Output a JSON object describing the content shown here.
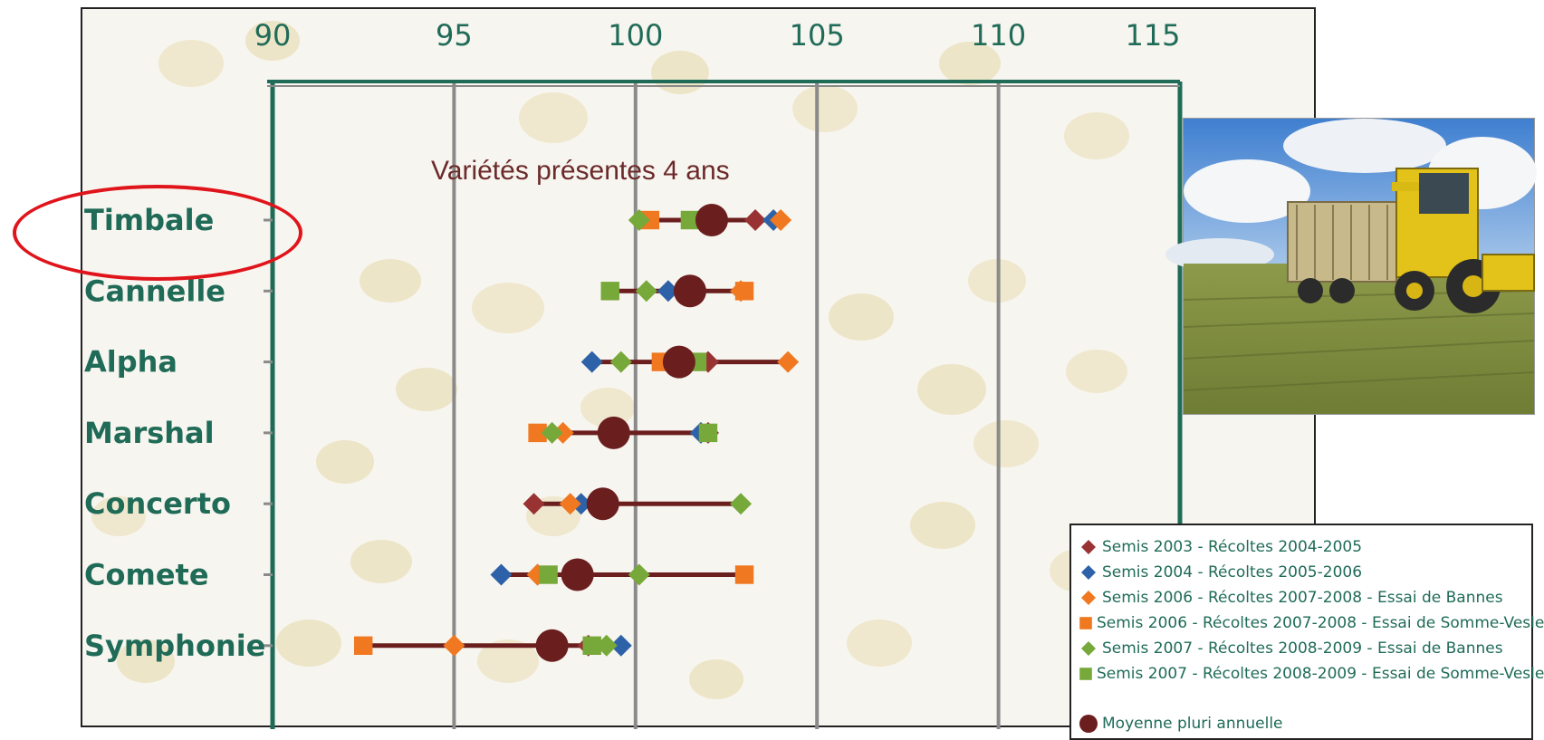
{
  "chart_data": {
    "type": "scatter",
    "orientation": "horizontal",
    "title": "Variétés présentes 4 ans",
    "xlim": [
      90,
      115
    ],
    "x_ticks": [
      "90",
      "95",
      "100",
      "105",
      "110",
      "115"
    ],
    "x_axis_position": "top",
    "grid": true,
    "legend_position": "bottom-right",
    "highlighted_category": "Timbale",
    "categories": [
      "Timbale",
      "Cannelle",
      "Alpha",
      "Marshal",
      "Concerto",
      "Comete",
      "Symphonie"
    ],
    "series": [
      {
        "name": "Semis 2003 - Récoltes 2004-2005",
        "marker": "diamond",
        "color": "#993333",
        "values": [
          103.3,
          null,
          102.0,
          102.0,
          97.2,
          97.3,
          98.7
        ]
      },
      {
        "name": "Semis 2004 - Récoltes 2005-2006",
        "marker": "diamond",
        "color": "#2e62a8",
        "values": [
          103.8,
          100.9,
          98.8,
          101.8,
          98.5,
          96.3,
          99.6
        ]
      },
      {
        "name": "Semis 2006 - Récoltes 2007-2008 - Essai de Bannes",
        "marker": "diamond",
        "color": "#f07820",
        "values": [
          104.0,
          102.9,
          104.2,
          98.0,
          98.2,
          97.3,
          95.0
        ]
      },
      {
        "name": "Semis 2006 - Récoltes 2007-2008 - Essai de Somme-Vesle",
        "marker": "square",
        "color": "#f07820",
        "values": [
          100.4,
          103.0,
          100.7,
          97.3,
          null,
          103.0,
          92.5
        ]
      },
      {
        "name": "Semis 2007 - Récoltes 2008-2009 - Essai de Bannes",
        "marker": "diamond",
        "color": "#77a83a",
        "values": [
          100.1,
          100.3,
          99.6,
          97.7,
          102.9,
          100.1,
          99.2
        ]
      },
      {
        "name": "Semis 2007 - Récoltes 2008-2009 - Essai de Somme-Vesle",
        "marker": "square",
        "color": "#77a83a",
        "values": [
          101.5,
          99.3,
          101.7,
          102.0,
          null,
          97.6,
          98.8
        ]
      },
      {
        "name": "Moyenne pluri annuelle",
        "marker": "circle",
        "color": "#6b1e1e",
        "values": [
          102.1,
          101.5,
          101.2,
          99.4,
          99.1,
          98.4,
          97.7
        ]
      }
    ],
    "range_line_color": "#6b1e1e"
  },
  "colors": {
    "axis_green": "#1f6b57",
    "grid_gray": "#8a8a8a",
    "highlight_red": "#e0141b",
    "label_green": "#1f6b57",
    "title_brown": "#6b2a2a"
  },
  "legend": {
    "mean_label": "Moyenne pluri annuelle"
  }
}
